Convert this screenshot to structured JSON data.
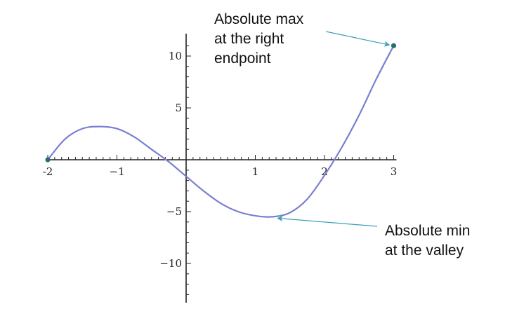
{
  "chart_data": {
    "type": "line",
    "title": "",
    "xlabel": "",
    "ylabel": "",
    "xlim": [
      -2,
      3
    ],
    "ylim": [
      -14,
      12
    ],
    "grid": false,
    "x_ticks": [
      {
        "value": -2,
        "label": "-2"
      },
      {
        "value": -1,
        "label": "−1"
      },
      {
        "value": 1,
        "label": "1"
      },
      {
        "value": 2,
        "label": "2"
      },
      {
        "value": 3,
        "label": "3"
      }
    ],
    "y_ticks": [
      {
        "value": 10,
        "label": "10"
      },
      {
        "value": 5,
        "label": "5"
      },
      {
        "value": -5,
        "label": "−5"
      },
      {
        "value": -10,
        "label": "−10"
      }
    ],
    "series": [
      {
        "color": "#7a7fcf",
        "x": [
          -2,
          -1.75,
          -1.5,
          -1.25,
          -1,
          -0.75,
          -0.5,
          -0.25,
          0,
          0.25,
          0.5,
          0.75,
          1,
          1.25,
          1.5,
          1.75,
          2,
          2.25,
          2.5,
          2.75,
          3
        ],
        "y": [
          0,
          2.0,
          3.0,
          3.2,
          3.0,
          2.2,
          1.0,
          -0.2,
          -1.6,
          -3.0,
          -4.2,
          -5.0,
          -5.4,
          -5.5,
          -5.1,
          -3.8,
          -1.5,
          1.2,
          4.3,
          7.8,
          11
        ]
      }
    ],
    "endpoints": [
      {
        "x": -2,
        "y": 0
      },
      {
        "x": 3,
        "y": 11
      }
    ],
    "annotations": [
      {
        "text": "Absolute max\nat the right\nendpoint",
        "target": {
          "x": 3,
          "y": 11
        }
      },
      {
        "text": "Absolute min\nat the valley",
        "target": {
          "x": 1.3,
          "y": -5.5
        }
      }
    ],
    "colors": {
      "curve": "#7a7fcf",
      "endpoint": "#2a6d78",
      "arrow": "#3aa0b8",
      "axis": "#222222"
    }
  }
}
